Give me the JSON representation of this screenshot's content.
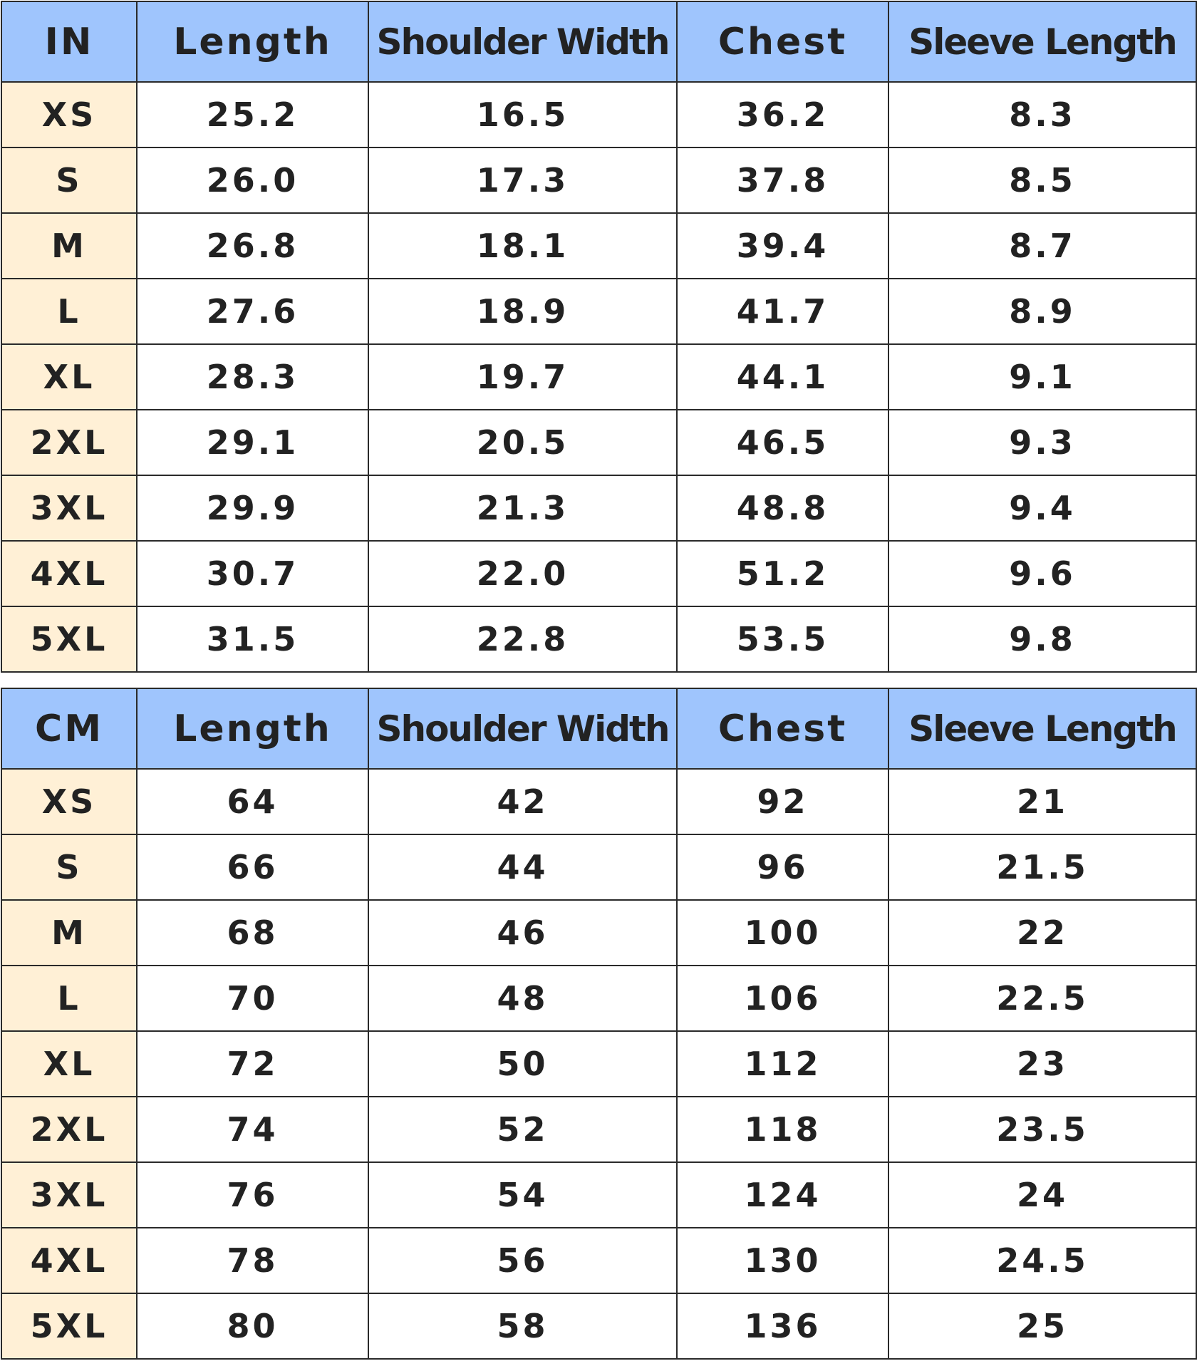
{
  "tables": [
    {
      "header": [
        "IN",
        "Length",
        "Shoulder Width",
        "Chest",
        "Sleeve Length"
      ],
      "rows": [
        [
          "XS",
          "25.2",
          "16.5",
          "36.2",
          "8.3"
        ],
        [
          "S",
          "26.0",
          "17.3",
          "37.8",
          "8.5"
        ],
        [
          "M",
          "26.8",
          "18.1",
          "39.4",
          "8.7"
        ],
        [
          "L",
          "27.6",
          "18.9",
          "41.7",
          "8.9"
        ],
        [
          "XL",
          "28.3",
          "19.7",
          "44.1",
          "9.1"
        ],
        [
          "2XL",
          "29.1",
          "20.5",
          "46.5",
          "9.3"
        ],
        [
          "3XL",
          "29.9",
          "21.3",
          "48.8",
          "9.4"
        ],
        [
          "4XL",
          "30.7",
          "22.0",
          "51.2",
          "9.6"
        ],
        [
          "5XL",
          "31.5",
          "22.8",
          "53.5",
          "9.8"
        ]
      ]
    },
    {
      "header": [
        "CM",
        "Length",
        "Shoulder Width",
        "Chest",
        "Sleeve Length"
      ],
      "rows": [
        [
          "XS",
          "64",
          "42",
          "92",
          "21"
        ],
        [
          "S",
          "66",
          "44",
          "96",
          "21.5"
        ],
        [
          "M",
          "68",
          "46",
          "100",
          "22"
        ],
        [
          "L",
          "70",
          "48",
          "106",
          "22.5"
        ],
        [
          "XL",
          "72",
          "50",
          "112",
          "23"
        ],
        [
          "2XL",
          "74",
          "52",
          "118",
          "23.5"
        ],
        [
          "3XL",
          "76",
          "54",
          "124",
          "24"
        ],
        [
          "4XL",
          "78",
          "56",
          "130",
          "24.5"
        ],
        [
          "5XL",
          "80",
          "58",
          "136",
          "25"
        ]
      ]
    }
  ]
}
